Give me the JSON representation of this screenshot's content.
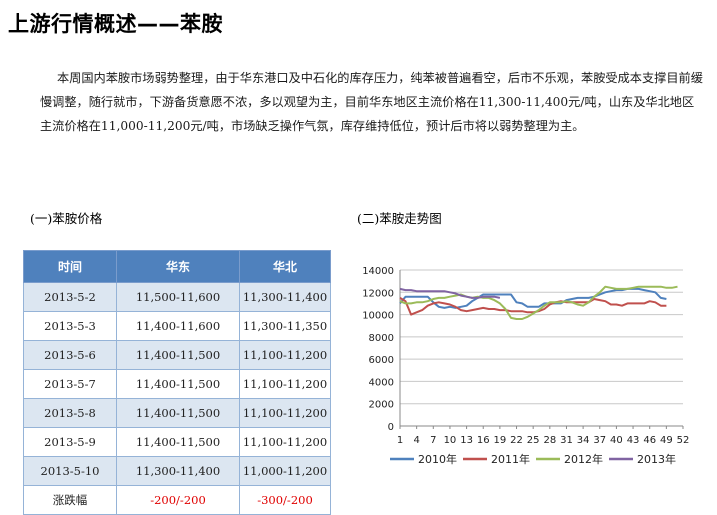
{
  "title": "上游行情概述——苯胺",
  "paragraph": "本周国内苯胺市场弱势整理，由于华东港口及中石化的库存压力，纯苯被普遍看空，后市不乐观，苯胺受成本支撑目前缓慢调整，随行就市，下游备货意愿不浓，多以观望为主，目前华东地区主流价格在11,300-11,400元/吨，山东及华北地区主流价格在11,000-11,200元/吨，市场缺乏操作气氛，库存维持低位，预计后市将以弱势整理为主。",
  "section1": "(一)苯胺价格",
  "section2": "(二)苯胺走势图",
  "table": {
    "headers": [
      "时间",
      "华东",
      "华北"
    ],
    "rows": [
      [
        "2013-5-2",
        "11,500-11,600",
        "11,300-11,400"
      ],
      [
        "2013-5-3",
        "11,400-11,600",
        "11,300-11,350"
      ],
      [
        "2013-5-6",
        "11,400-11,500",
        "11,100-11,200"
      ],
      [
        "2013-5-7",
        "11,400-11,500",
        "11,100-11,200"
      ],
      [
        "2013-5-8",
        "11,400-11,500",
        "11,100-11,200"
      ],
      [
        "2013-5-9",
        "11,400-11,500",
        "11,100-11,200"
      ],
      [
        "2013-5-10",
        "11,300-11,400",
        "11,000-11,200"
      ]
    ],
    "change_label": "涨跌幅",
    "change_east": "-200/-200",
    "change_north": "-300/-200"
  },
  "chart_data": {
    "type": "line",
    "ylim": [
      0,
      14000
    ],
    "yticks": [
      0,
      2000,
      4000,
      6000,
      8000,
      10000,
      12000,
      14000
    ],
    "xlim": [
      1,
      52
    ],
    "xticks": [
      1,
      4,
      7,
      10,
      13,
      16,
      19,
      22,
      25,
      28,
      31,
      34,
      37,
      40,
      43,
      46,
      49,
      52
    ],
    "grid": true,
    "legend_position": "bottom",
    "series": [
      {
        "name": "2010年",
        "color": "#4f81bd",
        "values": [
          11000,
          11600,
          11600,
          11600,
          11600,
          11600,
          11100,
          10700,
          10600,
          10700,
          10600,
          10700,
          10800,
          11200,
          11500,
          11800,
          11800,
          11800,
          11800,
          11800,
          11800,
          11100,
          11000,
          10700,
          10700,
          10700,
          11000,
          11000,
          11000,
          11000,
          11300,
          11400,
          11500,
          11500,
          11500,
          11600,
          11800,
          12000,
          12100,
          12200,
          12200,
          12300,
          12300,
          12300,
          12200,
          12100,
          12000,
          11500,
          11400
        ]
      },
      {
        "name": "2011年",
        "color": "#c0504d",
        "values": [
          11500,
          11200,
          10000,
          10200,
          10400,
          10800,
          11000,
          11100,
          11000,
          10900,
          10700,
          10400,
          10300,
          10400,
          10500,
          10600,
          10500,
          10500,
          10400,
          10400,
          10300,
          10300,
          10300,
          10200,
          10200,
          10300,
          10500,
          10900,
          11100,
          11200,
          11100,
          11100,
          11100,
          11100,
          11100,
          11400,
          11300,
          11200,
          10900,
          10900,
          10800,
          11000,
          11000,
          11000,
          11000,
          11200,
          11100,
          10800,
          10800
        ]
      },
      {
        "name": "2012年",
        "color": "#9bbb59",
        "values": [
          11200,
          11000,
          11000,
          11100,
          11100,
          11200,
          11400,
          11500,
          11500,
          11600,
          11700,
          11800,
          11600,
          11500,
          11600,
          11500,
          11500,
          11300,
          11000,
          10500,
          9700,
          9600,
          9600,
          9800,
          10100,
          10400,
          10800,
          11100,
          11100,
          11100,
          11200,
          11100,
          10900,
          10800,
          11100,
          11600,
          12000,
          12500,
          12400,
          12300,
          12300,
          12300,
          12400,
          12500,
          12500,
          12500,
          12500,
          12500,
          12400,
          12400,
          12500
        ]
      },
      {
        "name": "2013年",
        "color": "#8064a2",
        "values": [
          12300,
          12200,
          12200,
          12100,
          12100,
          12100,
          12100,
          12100,
          12100,
          12000,
          11900,
          11700,
          11600,
          11500,
          11500,
          11600,
          11600,
          11600,
          11500
        ]
      }
    ]
  }
}
